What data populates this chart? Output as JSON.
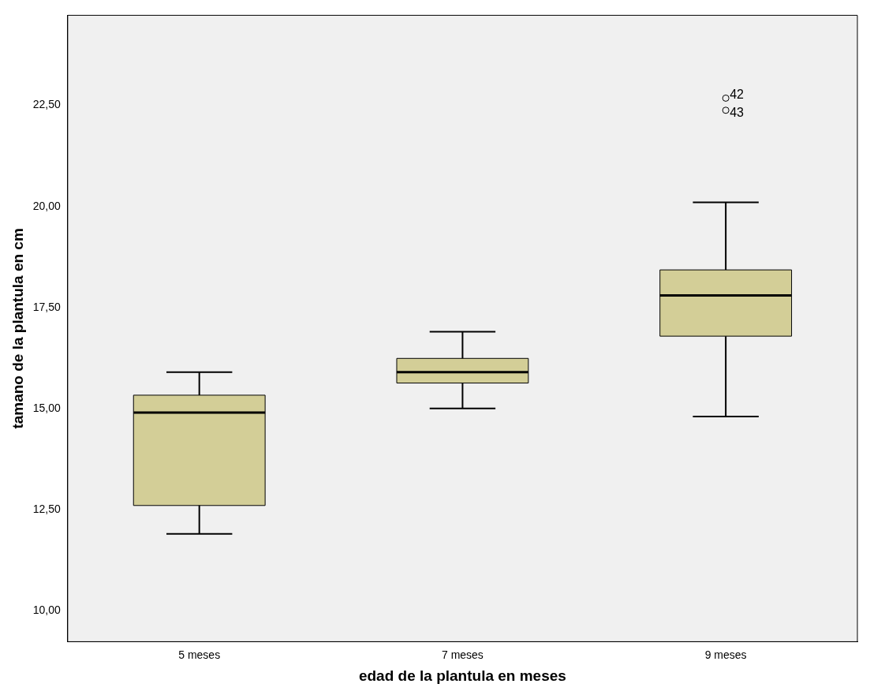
{
  "chart_data": {
    "type": "box",
    "xlabel": "edad de la plantula en meses",
    "ylabel": "tamano de la plantula en cm",
    "categories": [
      "5 meses",
      "7 meses",
      "9 meses"
    ],
    "series": [
      {
        "color": "#d3ce97",
        "boxes": [
          {
            "low": 11.9,
            "q1": 12.6,
            "median": 14.9,
            "q3": 15.33,
            "high": 15.9
          },
          {
            "low": 15.0,
            "q1": 15.63,
            "median": 15.9,
            "q3": 16.24,
            "high": 16.9
          },
          {
            "low": 14.8,
            "q1": 16.79,
            "median": 17.8,
            "q3": 18.43,
            "high": 20.1,
            "outliers": [
              22.68,
              22.38
            ]
          }
        ]
      }
    ],
    "annotations": [
      "42",
      "43"
    ],
    "ylim": [
      9.23,
      24.73
    ],
    "yticks": [
      {
        "value": 10,
        "label": "10,00"
      },
      {
        "value": 12.5,
        "label": "12,50"
      },
      {
        "value": 15,
        "label": "15,00"
      },
      {
        "value": 17.5,
        "label": "17,50"
      },
      {
        "value": 20,
        "label": "20,00"
      },
      {
        "value": 22.5,
        "label": "22,50"
      }
    ],
    "grid": false,
    "legend": false
  }
}
